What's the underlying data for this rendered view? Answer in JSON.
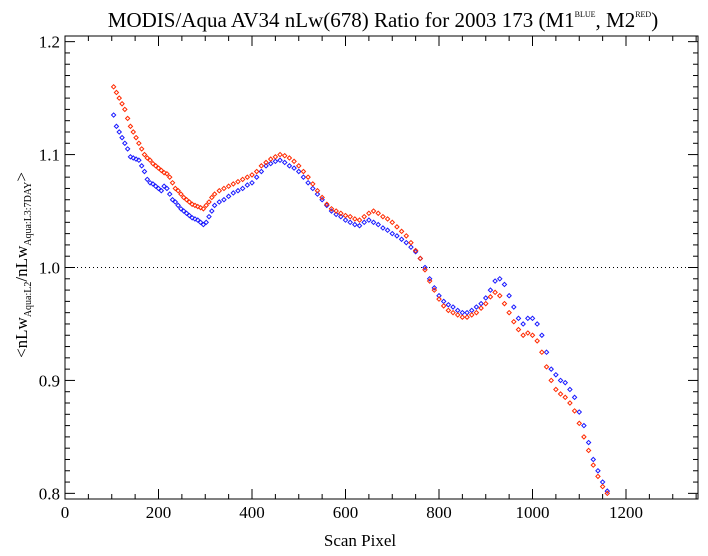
{
  "chart_data": {
    "type": "scatter",
    "title": {
      "main": "MODIS/Aqua AV34 nLw(678) Ratio for 2003 173 (M1",
      "sup1": "BLUE",
      "sep": ", M2",
      "sup2": "RED",
      "end": ")"
    },
    "xlabel": "Scan Pixel",
    "ylabel": {
      "p1": "<nLw",
      "s1": "Aqua:L2",
      "p2": "/nLw",
      "s2": "Aqua:L3:7DAY",
      "p3": ">"
    },
    "xlim": [
      0,
      1354
    ],
    "ylim": [
      0.795,
      1.205
    ],
    "x_ticks": [
      0,
      200,
      400,
      600,
      800,
      1000,
      1200
    ],
    "x_tick_labels": [
      "0",
      "200",
      "400",
      "600",
      "800",
      "1000",
      "1200"
    ],
    "y_ticks": [
      0.8,
      0.9,
      1.0,
      1.1,
      1.2
    ],
    "y_tick_labels": [
      "0.8",
      "0.9",
      "1.0",
      "1.1",
      "1.2"
    ],
    "reference_line": {
      "y": 1.0,
      "style": "dotted"
    },
    "marker": "diamond-open",
    "grid": false,
    "series": [
      {
        "color": "#1a1aff",
        "points": [
          [
            104,
            1.135
          ],
          [
            110,
            1.125
          ],
          [
            116,
            1.12
          ],
          [
            122,
            1.115
          ],
          [
            128,
            1.11
          ],
          [
            134,
            1.105
          ],
          [
            140,
            1.098
          ],
          [
            146,
            1.097
          ],
          [
            152,
            1.096
          ],
          [
            158,
            1.095
          ],
          [
            164,
            1.09
          ],
          [
            170,
            1.085
          ],
          [
            176,
            1.078
          ],
          [
            182,
            1.075
          ],
          [
            188,
            1.074
          ],
          [
            194,
            1.072
          ],
          [
            200,
            1.07
          ],
          [
            206,
            1.068
          ],
          [
            212,
            1.072
          ],
          [
            218,
            1.07
          ],
          [
            224,
            1.065
          ],
          [
            230,
            1.06
          ],
          [
            236,
            1.058
          ],
          [
            242,
            1.055
          ],
          [
            248,
            1.052
          ],
          [
            254,
            1.05
          ],
          [
            260,
            1.048
          ],
          [
            266,
            1.046
          ],
          [
            272,
            1.044
          ],
          [
            278,
            1.043
          ],
          [
            284,
            1.042
          ],
          [
            290,
            1.04
          ],
          [
            296,
            1.038
          ],
          [
            302,
            1.04
          ],
          [
            308,
            1.045
          ],
          [
            314,
            1.05
          ],
          [
            320,
            1.055
          ],
          [
            330,
            1.058
          ],
          [
            340,
            1.06
          ],
          [
            350,
            1.063
          ],
          [
            360,
            1.066
          ],
          [
            370,
            1.068
          ],
          [
            380,
            1.07
          ],
          [
            390,
            1.073
          ],
          [
            400,
            1.075
          ],
          [
            410,
            1.08
          ],
          [
            420,
            1.085
          ],
          [
            430,
            1.09
          ],
          [
            440,
            1.092
          ],
          [
            450,
            1.094
          ],
          [
            460,
            1.095
          ],
          [
            470,
            1.093
          ],
          [
            480,
            1.09
          ],
          [
            490,
            1.088
          ],
          [
            500,
            1.085
          ],
          [
            510,
            1.08
          ],
          [
            520,
            1.075
          ],
          [
            530,
            1.07
          ],
          [
            540,
            1.065
          ],
          [
            550,
            1.06
          ],
          [
            560,
            1.055
          ],
          [
            570,
            1.05
          ],
          [
            580,
            1.047
          ],
          [
            590,
            1.045
          ],
          [
            600,
            1.042
          ],
          [
            610,
            1.04
          ],
          [
            620,
            1.038
          ],
          [
            630,
            1.037
          ],
          [
            640,
            1.04
          ],
          [
            650,
            1.042
          ],
          [
            660,
            1.04
          ],
          [
            670,
            1.038
          ],
          [
            680,
            1.035
          ],
          [
            690,
            1.033
          ],
          [
            700,
            1.03
          ],
          [
            710,
            1.028
          ],
          [
            720,
            1.025
          ],
          [
            730,
            1.022
          ],
          [
            740,
            1.018
          ],
          [
            750,
            1.014
          ],
          [
            760,
            1.008
          ],
          [
            770,
            1.0
          ],
          [
            780,
            0.99
          ],
          [
            790,
            0.982
          ],
          [
            800,
            0.975
          ],
          [
            810,
            0.97
          ],
          [
            820,
            0.967
          ],
          [
            830,
            0.965
          ],
          [
            840,
            0.962
          ],
          [
            850,
            0.96
          ],
          [
            860,
            0.96
          ],
          [
            870,
            0.962
          ],
          [
            880,
            0.965
          ],
          [
            890,
            0.968
          ],
          [
            900,
            0.973
          ],
          [
            910,
            0.98
          ],
          [
            920,
            0.988
          ],
          [
            930,
            0.99
          ],
          [
            940,
            0.985
          ],
          [
            950,
            0.975
          ],
          [
            960,
            0.965
          ],
          [
            970,
            0.955
          ],
          [
            980,
            0.95
          ],
          [
            990,
            0.955
          ],
          [
            1000,
            0.955
          ],
          [
            1010,
            0.95
          ],
          [
            1020,
            0.94
          ],
          [
            1030,
            0.925
          ],
          [
            1040,
            0.91
          ],
          [
            1050,
            0.905
          ],
          [
            1060,
            0.9
          ],
          [
            1070,
            0.898
          ],
          [
            1080,
            0.892
          ],
          [
            1090,
            0.885
          ],
          [
            1100,
            0.872
          ],
          [
            1110,
            0.86
          ],
          [
            1120,
            0.845
          ],
          [
            1130,
            0.83
          ],
          [
            1140,
            0.82
          ],
          [
            1150,
            0.81
          ],
          [
            1160,
            0.802
          ]
        ]
      },
      {
        "color": "#ff2a00",
        "points": [
          [
            104,
            1.16
          ],
          [
            110,
            1.155
          ],
          [
            116,
            1.15
          ],
          [
            122,
            1.145
          ],
          [
            128,
            1.14
          ],
          [
            134,
            1.132
          ],
          [
            140,
            1.125
          ],
          [
            146,
            1.12
          ],
          [
            152,
            1.115
          ],
          [
            158,
            1.11
          ],
          [
            164,
            1.105
          ],
          [
            170,
            1.1
          ],
          [
            176,
            1.097
          ],
          [
            182,
            1.095
          ],
          [
            188,
            1.092
          ],
          [
            194,
            1.09
          ],
          [
            200,
            1.088
          ],
          [
            206,
            1.086
          ],
          [
            212,
            1.084
          ],
          [
            218,
            1.083
          ],
          [
            224,
            1.08
          ],
          [
            230,
            1.075
          ],
          [
            236,
            1.07
          ],
          [
            242,
            1.068
          ],
          [
            248,
            1.065
          ],
          [
            254,
            1.062
          ],
          [
            260,
            1.06
          ],
          [
            266,
            1.058
          ],
          [
            272,
            1.056
          ],
          [
            278,
            1.055
          ],
          [
            284,
            1.054
          ],
          [
            290,
            1.053
          ],
          [
            296,
            1.052
          ],
          [
            302,
            1.055
          ],
          [
            308,
            1.058
          ],
          [
            314,
            1.062
          ],
          [
            320,
            1.065
          ],
          [
            330,
            1.068
          ],
          [
            340,
            1.07
          ],
          [
            350,
            1.072
          ],
          [
            360,
            1.074
          ],
          [
            370,
            1.076
          ],
          [
            380,
            1.078
          ],
          [
            390,
            1.08
          ],
          [
            400,
            1.082
          ],
          [
            410,
            1.085
          ],
          [
            420,
            1.09
          ],
          [
            430,
            1.093
          ],
          [
            440,
            1.096
          ],
          [
            450,
            1.098
          ],
          [
            460,
            1.1
          ],
          [
            470,
            1.099
          ],
          [
            480,
            1.097
          ],
          [
            490,
            1.094
          ],
          [
            500,
            1.09
          ],
          [
            510,
            1.085
          ],
          [
            520,
            1.08
          ],
          [
            530,
            1.074
          ],
          [
            540,
            1.068
          ],
          [
            550,
            1.062
          ],
          [
            560,
            1.056
          ],
          [
            570,
            1.052
          ],
          [
            580,
            1.05
          ],
          [
            590,
            1.048
          ],
          [
            600,
            1.046
          ],
          [
            610,
            1.045
          ],
          [
            620,
            1.043
          ],
          [
            630,
            1.042
          ],
          [
            640,
            1.045
          ],
          [
            650,
            1.048
          ],
          [
            660,
            1.05
          ],
          [
            670,
            1.048
          ],
          [
            680,
            1.045
          ],
          [
            690,
            1.043
          ],
          [
            700,
            1.04
          ],
          [
            710,
            1.036
          ],
          [
            720,
            1.032
          ],
          [
            730,
            1.028
          ],
          [
            740,
            1.022
          ],
          [
            750,
            1.015
          ],
          [
            760,
            1.008
          ],
          [
            770,
            0.998
          ],
          [
            780,
            0.988
          ],
          [
            790,
            0.98
          ],
          [
            800,
            0.972
          ],
          [
            810,
            0.966
          ],
          [
            820,
            0.962
          ],
          [
            830,
            0.96
          ],
          [
            840,
            0.958
          ],
          [
            850,
            0.956
          ],
          [
            860,
            0.956
          ],
          [
            870,
            0.958
          ],
          [
            880,
            0.96
          ],
          [
            890,
            0.964
          ],
          [
            900,
            0.968
          ],
          [
            910,
            0.974
          ],
          [
            920,
            0.978
          ],
          [
            930,
            0.975
          ],
          [
            940,
            0.968
          ],
          [
            950,
            0.96
          ],
          [
            960,
            0.952
          ],
          [
            970,
            0.945
          ],
          [
            980,
            0.94
          ],
          [
            990,
            0.942
          ],
          [
            1000,
            0.94
          ],
          [
            1010,
            0.935
          ],
          [
            1020,
            0.925
          ],
          [
            1030,
            0.912
          ],
          [
            1040,
            0.9
          ],
          [
            1050,
            0.892
          ],
          [
            1060,
            0.888
          ],
          [
            1070,
            0.885
          ],
          [
            1080,
            0.88
          ],
          [
            1090,
            0.873
          ],
          [
            1100,
            0.862
          ],
          [
            1110,
            0.85
          ],
          [
            1120,
            0.838
          ],
          [
            1130,
            0.825
          ],
          [
            1140,
            0.815
          ],
          [
            1150,
            0.806
          ],
          [
            1160,
            0.8
          ]
        ]
      }
    ]
  }
}
